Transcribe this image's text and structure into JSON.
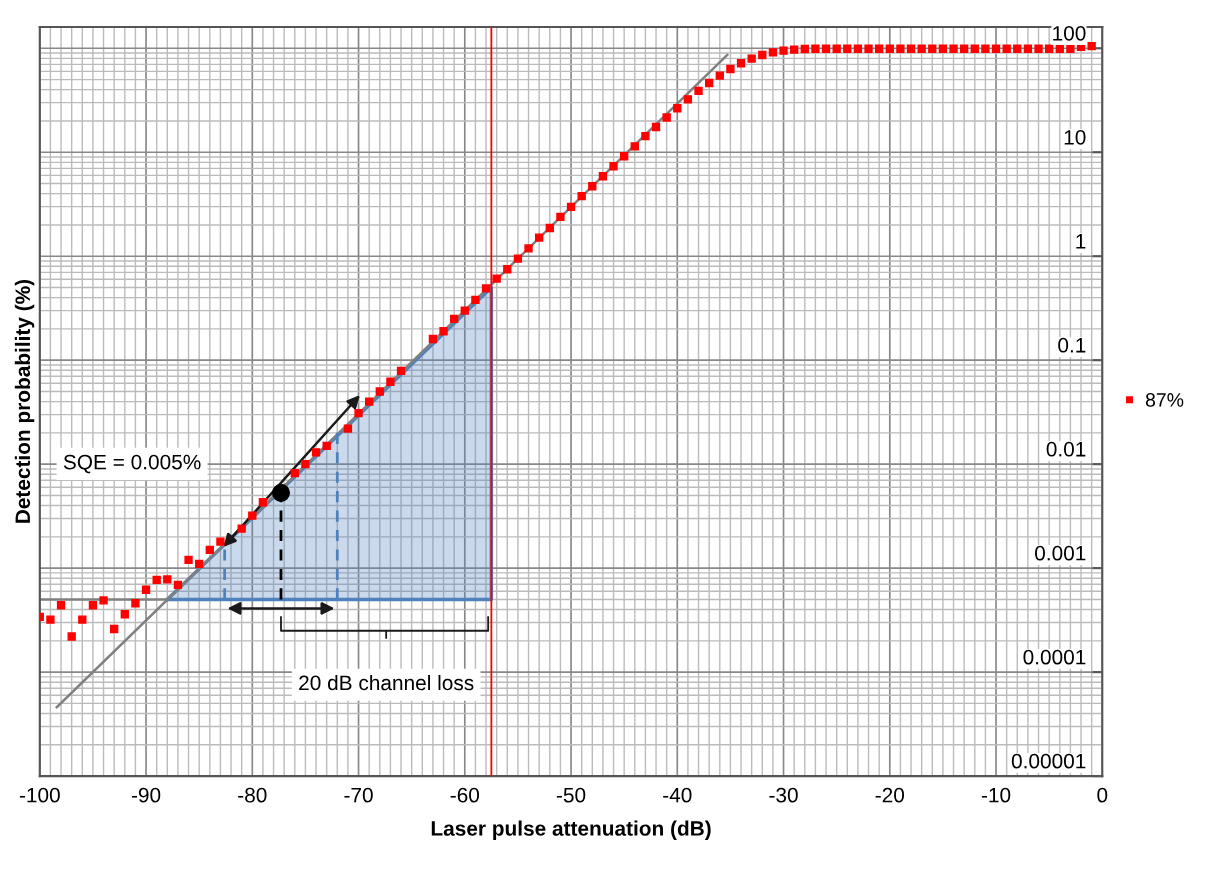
{
  "chart_data": {
    "type": "scatter",
    "xlabel": "Laser pulse attenuation (dB)",
    "ylabel": "Detection probability (%)",
    "xlim": [
      -100,
      0
    ],
    "xticks": [
      -100,
      -90,
      -80,
      -70,
      -60,
      -50,
      -40,
      -30,
      -20,
      -10,
      0
    ],
    "ylim": [
      1e-05,
      160
    ],
    "log": "y",
    "yticks": [
      {
        "value": 1e-05,
        "label": "0.00001"
      },
      {
        "value": 0.0001,
        "label": "0.0001"
      },
      {
        "value": 0.001,
        "label": "0.001"
      },
      {
        "value": 0.01,
        "label": "0.01"
      },
      {
        "value": 0.1,
        "label": "0.1"
      },
      {
        "value": 1,
        "label": "1"
      },
      {
        "value": 10,
        "label": "10"
      },
      {
        "value": 100,
        "label": "100"
      }
    ],
    "grid": true,
    "legend": "right",
    "series": [
      {
        "type": "area",
        "color": "#4f81bd",
        "x": [
          -88,
          -57.5
        ],
        "values": [
          0.0005,
          0.5
        ]
      },
      {
        "type": "line",
        "color": "#808080",
        "x": [
          -98.4,
          -35.3
        ],
        "values": [
          4.6e-05,
          86
        ]
      },
      {
        "type": "line",
        "color": "#808080",
        "x": [
          -100,
          -88
        ],
        "values": [
          0.0005,
          0.0005
        ]
      },
      {
        "type": "line",
        "color": "#000000",
        "line_style": "dashed",
        "x": [
          -77.3,
          -77.3
        ],
        "values": [
          0.0005,
          0.0053
        ]
      },
      {
        "type": "line",
        "color": "#4f81bd",
        "line_style": "dashed",
        "x": [
          -82.6,
          -82.6
        ],
        "values": [
          0.0005,
          0.0018
        ]
      },
      {
        "type": "line",
        "color": "#4f81bd",
        "line_style": "dashed",
        "x": [
          -72,
          -72
        ],
        "values": [
          0.0005,
          0.021
        ]
      },
      {
        "name": "87%",
        "color": "#ff0000",
        "marker": "square",
        "x": [
          -100,
          -99,
          -98,
          -97,
          -96,
          -95,
          -94,
          -93,
          -92,
          -91,
          -90,
          -89,
          -88,
          -87,
          -86,
          -85,
          -84,
          -83,
          -82,
          -81,
          -80,
          -79,
          -78,
          -77,
          -76,
          -75,
          -74,
          -73,
          -72,
          -71,
          -70,
          -69,
          -68,
          -67,
          -66,
          -65,
          -64,
          -63,
          -62,
          -61,
          -60,
          -59,
          -58,
          -57,
          -56,
          -55,
          -54,
          -53,
          -52,
          -51,
          -50,
          -49,
          -48,
          -47,
          -46,
          -45,
          -44,
          -43,
          -42,
          -41,
          -40,
          -39,
          -38,
          -37,
          -36,
          -35,
          -34,
          -33,
          -32,
          -31,
          -30,
          -29,
          -28,
          -27,
          -26,
          -25,
          -24,
          -23,
          -22,
          -21,
          -20,
          -19,
          -18,
          -17,
          -16,
          -15,
          -14,
          -13,
          -12,
          -11,
          -10,
          -9,
          -8,
          -7,
          -6,
          -5,
          -4,
          -3,
          -2,
          -1
        ],
        "values": [
          0.00034,
          0.00032,
          0.00044,
          0.00022,
          0.00032,
          0.00044,
          0.00049,
          0.00026,
          0.00036,
          0.00046,
          0.00062,
          0.00077,
          0.00078,
          0.00069,
          0.0012,
          0.0011,
          0.0015,
          0.0018,
          null,
          0.0024,
          0.0032,
          0.0043,
          null,
          null,
          0.0082,
          0.01,
          0.013,
          0.015,
          null,
          0.022,
          0.031,
          0.04,
          0.05,
          0.062,
          0.079,
          null,
          null,
          0.16,
          0.19,
          0.25,
          0.3,
          0.38,
          0.49,
          0.61,
          0.75,
          0.95,
          1.19,
          1.51,
          1.87,
          2.39,
          2.98,
          3.78,
          4.71,
          5.88,
          7.33,
          9.16,
          11.4,
          14.3,
          17.5,
          21.6,
          26.5,
          32.3,
          38.9,
          46.4,
          54.6,
          63.2,
          71.8,
          79.6,
          86.2,
          91.5,
          95.1,
          97.2,
          98.5,
          99,
          99,
          99,
          99,
          99,
          99,
          99,
          99,
          99,
          99,
          99,
          99,
          99,
          99,
          99,
          99,
          99,
          99,
          99,
          99,
          99,
          99,
          99,
          99,
          99,
          103,
          105
        ]
      },
      {
        "color": "#000000",
        "marker": "circle",
        "x": [
          -77.3
        ],
        "values": [
          0.0053
        ]
      }
    ],
    "ref_lines": [
      {
        "axis": "x",
        "value": -57.5,
        "color": "#ff0000"
      }
    ],
    "annotations": [
      "SQE = 0.005%",
      "20 dB channel loss"
    ]
  }
}
